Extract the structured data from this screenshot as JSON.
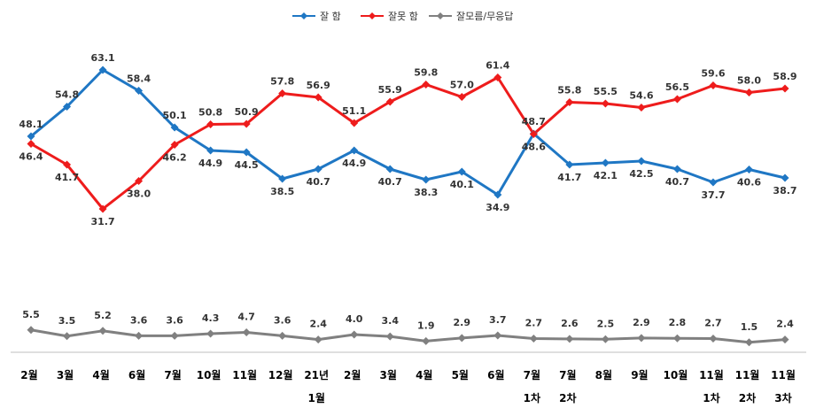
{
  "chart_data": {
    "type": "line",
    "categories": [
      [
        "2월"
      ],
      [
        "3월"
      ],
      [
        "4월"
      ],
      [
        "6월"
      ],
      [
        "7월"
      ],
      [
        "10월"
      ],
      [
        "11월"
      ],
      [
        "12월"
      ],
      [
        "21년",
        "1월"
      ],
      [
        "2월"
      ],
      [
        "3월"
      ],
      [
        "4월"
      ],
      [
        "5월"
      ],
      [
        "6월"
      ],
      [
        "7월",
        "1차"
      ],
      [
        "7월",
        "2차"
      ],
      [
        "8월"
      ],
      [
        "9월"
      ],
      [
        "10월"
      ],
      [
        "11월",
        "1차"
      ],
      [
        "11월",
        "2차"
      ],
      [
        "11월",
        "3차"
      ]
    ],
    "series": [
      {
        "name": "잘 함",
        "color": "#1f77c4",
        "values": [
          48.1,
          54.8,
          63.1,
          58.4,
          50.1,
          44.9,
          44.5,
          38.5,
          40.7,
          44.9,
          40.7,
          38.3,
          40.1,
          34.9,
          48.7,
          41.7,
          42.1,
          42.5,
          40.7,
          37.7,
          40.6,
          38.7
        ]
      },
      {
        "name": "잘못 함",
        "color": "#ee1c1c",
        "values": [
          46.4,
          41.7,
          31.7,
          38.0,
          46.2,
          50.8,
          50.9,
          57.8,
          56.9,
          51.1,
          55.9,
          59.8,
          57.0,
          61.4,
          48.6,
          55.8,
          55.5,
          54.6,
          56.5,
          59.6,
          58.0,
          58.9
        ]
      },
      {
        "name": "잘모름/무응답",
        "color": "#808080",
        "values": [
          5.5,
          3.5,
          5.2,
          3.6,
          3.6,
          4.3,
          4.7,
          3.6,
          2.4,
          4.0,
          3.4,
          1.9,
          2.9,
          3.7,
          2.7,
          2.6,
          2.5,
          2.9,
          2.8,
          2.7,
          1.5,
          2.4
        ]
      }
    ],
    "legend_position": "top-center",
    "grid": false
  }
}
